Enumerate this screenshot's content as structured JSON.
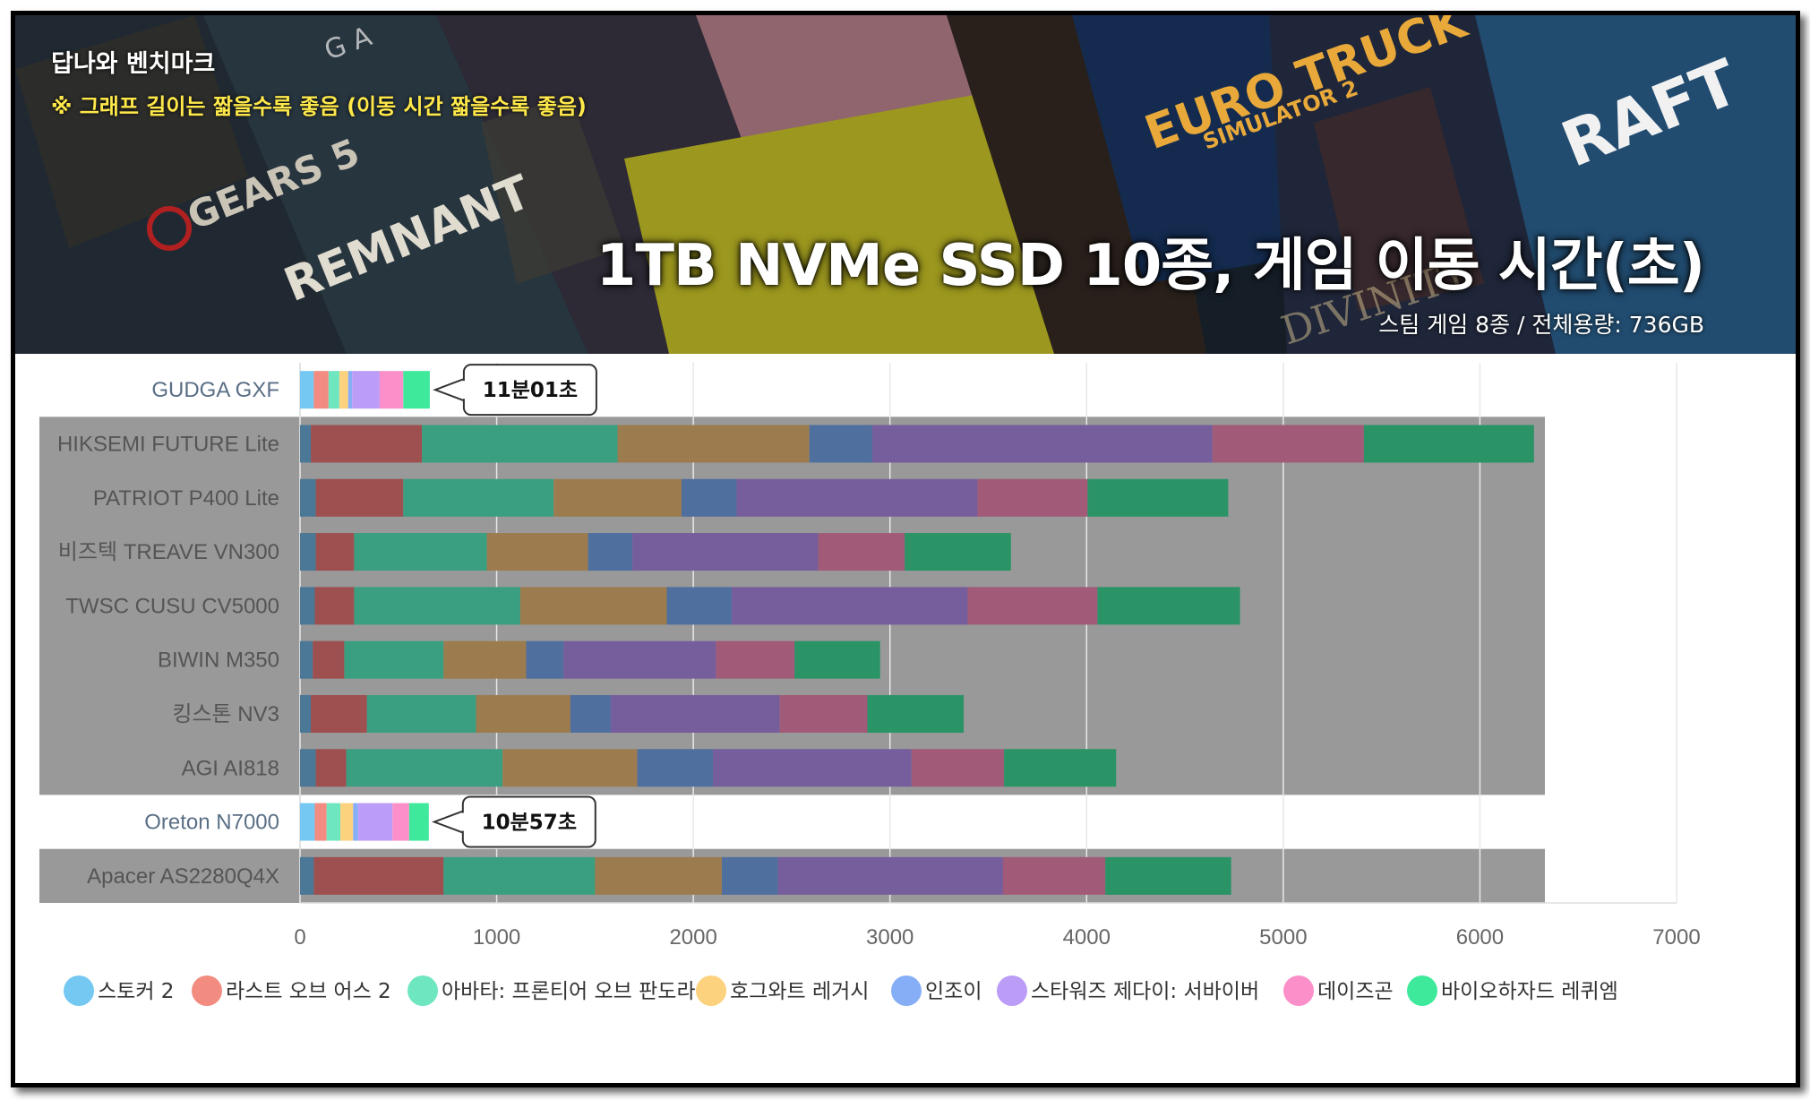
{
  "header": {
    "site_title": "답나와 벤치마크",
    "note": "※ 그래프 길이는 짧을수록 좋음 (이동 시간 짧을수록 좋음)",
    "title": "1TB NVMe SSD 10종, 게임 이동 시간(초)",
    "subtitle": "스팀 게임 8종 / 전체용량: 736GB",
    "banner_art_texts": [
      "GEARS 5",
      "REMNANT",
      "EURO TRUCK SIMULATOR 2",
      "RAFT",
      "DIVINITY"
    ]
  },
  "colors": {
    "highlight_series": [
      "#74c8f2",
      "#f28b80",
      "#6ee6bf",
      "#fdd27e",
      "#86aef7",
      "#bb9cf7",
      "#fb8fc9",
      "#3ee99c"
    ],
    "muted_series": [
      "#4a7896",
      "#9e4f4f",
      "#3a9e80",
      "#9c7c4f",
      "#4f6f9e",
      "#765e9c",
      "#a15a77",
      "#2a9467"
    ],
    "dim_background": "#999999",
    "callout_border": "#333333"
  },
  "chart_data": {
    "type": "bar",
    "orientation": "horizontal",
    "stacked": true,
    "categories": [
      "GUDGA GXF",
      "HIKSEMI FUTURE Lite",
      "PATRIOT P400 Lite",
      "비즈텍 TREAVE VN300",
      "TWSC CUSU CV5000",
      "BIWIN M350",
      "킹스톤 NV3",
      "AGI AI818",
      "Oreton N7000",
      "Apacer AS2280Q4X"
    ],
    "highlighted": [
      "GUDGA GXF",
      "Oreton N7000"
    ],
    "series": [
      {
        "name": "스토커 2",
        "values": [
          70,
          55,
          80,
          80,
          75,
          65,
          55,
          80,
          75,
          70
        ]
      },
      {
        "name": "라스트 오브 어스 2",
        "values": [
          75,
          565,
          445,
          195,
          200,
          160,
          285,
          155,
          60,
          660
        ]
      },
      {
        "name": "아바타: 프론티어 오브 판도라",
        "values": [
          55,
          995,
          765,
          675,
          845,
          505,
          555,
          795,
          70,
          770
        ]
      },
      {
        "name": "호그와트 레거시",
        "values": [
          45,
          975,
          650,
          515,
          745,
          420,
          480,
          685,
          65,
          645
        ]
      },
      {
        "name": "인조이",
        "values": [
          20,
          320,
          280,
          225,
          330,
          190,
          205,
          385,
          25,
          285
        ]
      },
      {
        "name": "스타워즈 제다이: 서바이버",
        "values": [
          140,
          1730,
          1225,
          945,
          1200,
          775,
          860,
          1010,
          175,
          1145
        ]
      },
      {
        "name": "데이즈곤",
        "values": [
          120,
          770,
          560,
          440,
          660,
          400,
          445,
          470,
          85,
          520
        ]
      },
      {
        "name": "바이오하자드 레퀴엠",
        "values": [
          135,
          865,
          715,
          540,
          725,
          435,
          490,
          570,
          100,
          640
        ]
      }
    ],
    "annotations": [
      {
        "category": "GUDGA GXF",
        "text": "11분01초"
      },
      {
        "category": "Oreton N7000",
        "text": "10분57초"
      }
    ],
    "xlim": [
      0,
      7000
    ],
    "xticks": [
      "0",
      "1000",
      "2000",
      "3000",
      "4000",
      "5000",
      "6000",
      "7000"
    ],
    "legend_position": "bottom",
    "grid": true
  }
}
